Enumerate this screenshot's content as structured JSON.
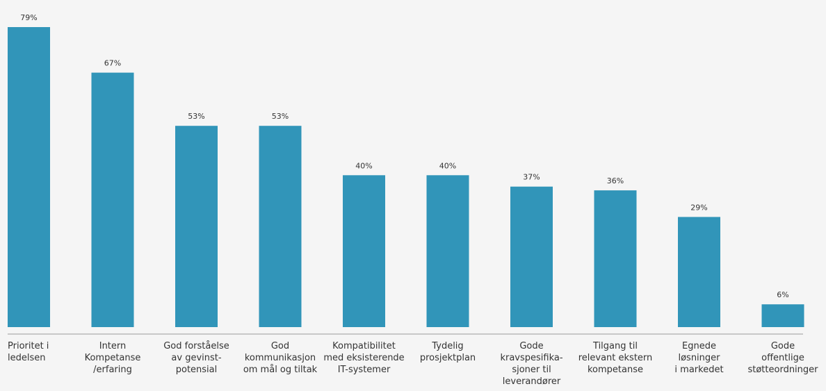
{
  "chart_data": {
    "type": "bar",
    "categories": [
      [
        "Prioritet i",
        "ledelsen"
      ],
      [
        "Intern",
        "Kompetanse",
        "/erfaring"
      ],
      [
        "God forståelse",
        "av gevinst-",
        "potensial"
      ],
      [
        "God",
        "kommunikasjon",
        "om mål og tiltak"
      ],
      [
        "Kompatibilitet",
        "med eksisterende",
        "IT-systemer"
      ],
      [
        "Tydelig",
        "prosjektplan"
      ],
      [
        "Gode",
        "kravspesifika-",
        "sjoner til",
        "leverandører"
      ],
      [
        "Tilgang til",
        "relevant ekstern",
        "kompetanse"
      ],
      [
        "Egnede",
        "løsninger",
        "i markedet"
      ],
      [
        "Gode",
        "offentlige",
        "støtteordninger"
      ]
    ],
    "values": [
      79,
      67,
      53,
      53,
      40,
      40,
      37,
      36,
      29,
      6
    ],
    "value_labels": [
      "79%",
      "67%",
      "53%",
      "53%",
      "40%",
      "40%",
      "37%",
      "36%",
      "29%",
      "6%"
    ],
    "first_label_align": "left",
    "ylim": [
      0,
      100
    ],
    "grid": false,
    "legend": "none",
    "colors": {
      "bar": "#3195b9",
      "baseline": "#9a9a9a",
      "text": "#333333",
      "background": "#f5f5f5"
    }
  }
}
